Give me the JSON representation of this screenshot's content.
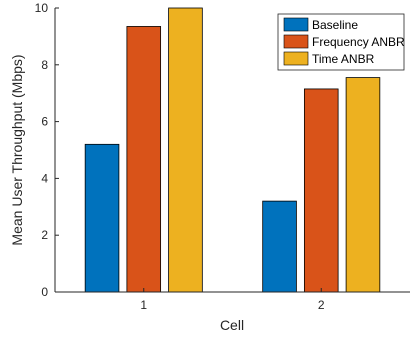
{
  "chart_data": {
    "type": "bar",
    "categories": [
      "1",
      "2"
    ],
    "series": [
      {
        "name": "Baseline",
        "values": [
          5.2,
          3.2
        ],
        "color": "#0072BD"
      },
      {
        "name": "Frequency ANBR",
        "values": [
          9.35,
          7.15
        ],
        "color": "#D95319"
      },
      {
        "name": "Time ANBR",
        "values": [
          10.0,
          7.55
        ],
        "color": "#EDB120"
      }
    ],
    "xlabel": "Cell",
    "ylabel": "Mean User Throughput (Mbps)",
    "ylim": [
      0,
      10
    ],
    "yticks": [
      "0",
      "2",
      "4",
      "6",
      "8",
      "10"
    ],
    "grid": false,
    "legend": "top-right"
  }
}
